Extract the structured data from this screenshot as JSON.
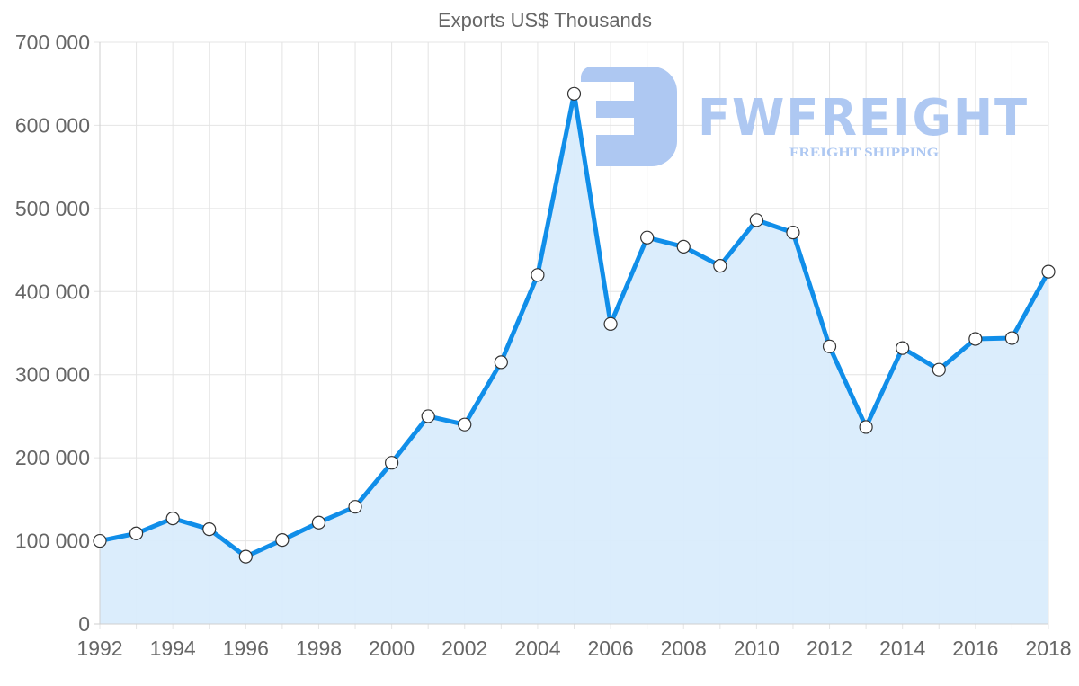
{
  "chart_data": {
    "type": "area",
    "title": "Exports US$ Thousands",
    "xlabel": "",
    "ylabel": "",
    "x": [
      1992,
      1993,
      1994,
      1995,
      1996,
      1997,
      1998,
      1999,
      2000,
      2001,
      2002,
      2003,
      2004,
      2005,
      2006,
      2007,
      2008,
      2009,
      2010,
      2011,
      2012,
      2013,
      2014,
      2015,
      2016,
      2017,
      2018
    ],
    "series": [
      {
        "name": "Exports US$ Thousands",
        "values": [
          100000,
          109000,
          127000,
          114000,
          81000,
          101000,
          122000,
          141000,
          194000,
          250000,
          240000,
          315000,
          420000,
          638000,
          361000,
          465000,
          454000,
          431000,
          486000,
          471000,
          334000,
          237000,
          332000,
          306000,
          343000,
          344000,
          424000
        ]
      }
    ],
    "ylim": [
      0,
      700000
    ],
    "y_ticks": [
      "0",
      "100 000",
      "200 000",
      "300 000",
      "400 000",
      "500 000",
      "600 000",
      "700 000"
    ],
    "x_ticks": [
      "1992",
      "1994",
      "1996",
      "1998",
      "2000",
      "2002",
      "2004",
      "2006",
      "2008",
      "2010",
      "2012",
      "2014",
      "2016",
      "2018"
    ],
    "grid": true,
    "legend": "none",
    "line_color": "#108ee9",
    "fill_color": "#d9ecfc"
  },
  "watermark": {
    "brand": "FWFREIGHT",
    "tagline": "FREIGHT SHIPPING"
  }
}
